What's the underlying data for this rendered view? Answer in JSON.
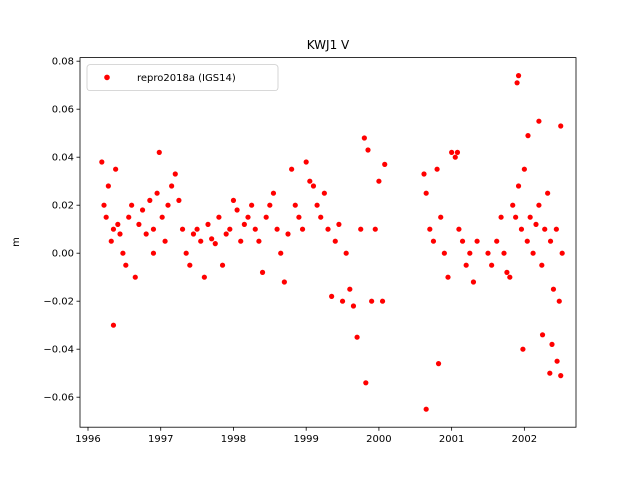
{
  "chart_data": {
    "type": "scatter",
    "title": "KWJ1 V",
    "xlabel": "",
    "ylabel": "m",
    "xlim": [
      1995.89,
      2002.71
    ],
    "ylim": [
      -0.0725,
      0.0815
    ],
    "x_ticks": [
      1996,
      1997,
      1998,
      1999,
      2000,
      2001,
      2002
    ],
    "x_tick_labels": [
      "1996",
      "1997",
      "1998",
      "1999",
      "2000",
      "2001",
      "2002"
    ],
    "y_ticks": [
      -0.06,
      -0.04,
      -0.02,
      0.0,
      0.02,
      0.04,
      0.06,
      0.08
    ],
    "y_tick_labels": [
      "−0.06",
      "−0.04",
      "−0.02",
      "0.00",
      "0.02",
      "0.04",
      "0.06",
      "0.08"
    ],
    "grid": false,
    "legend_position": "top-left",
    "series": [
      {
        "name": "repro2018a (IGS14)",
        "color": "#ff0000",
        "marker": "circle",
        "x": [
          1996.19,
          1996.22,
          1996.25,
          1996.28,
          1996.32,
          1996.35,
          1996.38,
          1996.41,
          1996.44,
          1996.48,
          1996.52,
          1996.56,
          1996.6,
          1996.65,
          1996.7,
          1996.75,
          1996.8,
          1996.85,
          1996.9,
          1996.95,
          1996.98,
          1997.02,
          1997.06,
          1997.1,
          1997.15,
          1997.2,
          1997.25,
          1997.3,
          1997.35,
          1997.4,
          1997.45,
          1997.5,
          1997.55,
          1997.6,
          1997.65,
          1997.7,
          1997.75,
          1997.8,
          1997.85,
          1997.9,
          1997.95,
          1998.0,
          1998.05,
          1998.1,
          1998.15,
          1998.2,
          1998.25,
          1998.3,
          1998.35,
          1998.4,
          1998.45,
          1998.5,
          1998.55,
          1998.6,
          1998.65,
          1998.7,
          1998.75,
          1998.8,
          1998.85,
          1998.9,
          1998.95,
          1999.0,
          1999.05,
          1999.1,
          1999.15,
          1999.2,
          1999.25,
          1999.3,
          1999.35,
          1999.4,
          1999.45,
          1999.5,
          1999.55,
          1999.6,
          1999.65,
          1999.7,
          1999.75,
          1999.8,
          1999.85,
          1999.9,
          1999.95,
          2000.0,
          2000.05,
          2000.08,
          2000.62,
          2000.65,
          2000.7,
          2000.75,
          2000.8,
          2000.85,
          2000.9,
          2000.95,
          2001.0,
          2001.05,
          2001.1,
          2001.15,
          2001.2,
          2001.25,
          2001.3,
          2001.35,
          2001.5,
          2001.55,
          2001.62,
          2001.68,
          2001.72,
          2001.76,
          2001.8,
          2001.84,
          2001.88,
          2001.92,
          2001.96,
          2002.0,
          2002.04,
          2002.08,
          2002.12,
          2002.16,
          2002.2,
          2002.24,
          2002.28,
          2002.32,
          2002.36,
          2002.4,
          2002.44,
          2002.48,
          2002.52,
          2001.9,
          2001.92,
          2002.05,
          2002.2,
          2002.35,
          2002.45,
          2002.5,
          1996.35,
          1996.9,
          1999.82,
          2000.65,
          2000.82,
          2001.98,
          2002.25,
          2002.38,
          2002.5,
          2001.08
        ],
        "y": [
          0.038,
          0.02,
          0.015,
          0.028,
          0.005,
          0.01,
          0.035,
          0.012,
          0.008,
          0.0,
          -0.005,
          0.015,
          0.02,
          -0.01,
          0.012,
          0.018,
          0.008,
          0.022,
          0.01,
          0.025,
          0.042,
          0.015,
          0.005,
          0.02,
          0.028,
          0.033,
          0.022,
          0.01,
          0.0,
          -0.005,
          0.008,
          0.01,
          0.005,
          -0.01,
          0.012,
          0.006,
          0.004,
          0.015,
          -0.005,
          0.008,
          0.01,
          0.022,
          0.018,
          0.005,
          0.012,
          0.015,
          0.02,
          0.01,
          0.005,
          -0.008,
          0.015,
          0.02,
          0.025,
          0.01,
          0.0,
          -0.012,
          0.008,
          0.035,
          0.02,
          0.015,
          0.01,
          0.038,
          0.03,
          0.028,
          0.02,
          0.015,
          0.025,
          0.01,
          -0.018,
          0.005,
          0.012,
          -0.02,
          0.0,
          -0.015,
          -0.022,
          -0.035,
          0.01,
          0.048,
          0.043,
          -0.02,
          0.01,
          0.03,
          -0.02,
          0.037,
          0.033,
          0.025,
          0.01,
          0.005,
          0.035,
          0.015,
          0.0,
          -0.01,
          0.042,
          0.04,
          0.01,
          0.005,
          -0.005,
          0.0,
          -0.012,
          0.005,
          0.0,
          -0.005,
          0.005,
          0.015,
          0.0,
          -0.008,
          -0.01,
          0.02,
          0.015,
          0.028,
          0.01,
          0.035,
          0.005,
          0.015,
          0.0,
          0.012,
          0.02,
          -0.005,
          0.01,
          0.025,
          0.005,
          -0.015,
          0.01,
          -0.02,
          0.0,
          0.071,
          0.074,
          0.049,
          0.055,
          -0.05,
          -0.045,
          0.053,
          -0.03,
          0.0,
          -0.054,
          -0.065,
          -0.046,
          -0.04,
          -0.034,
          -0.038,
          -0.051,
          0.042
        ]
      }
    ]
  }
}
